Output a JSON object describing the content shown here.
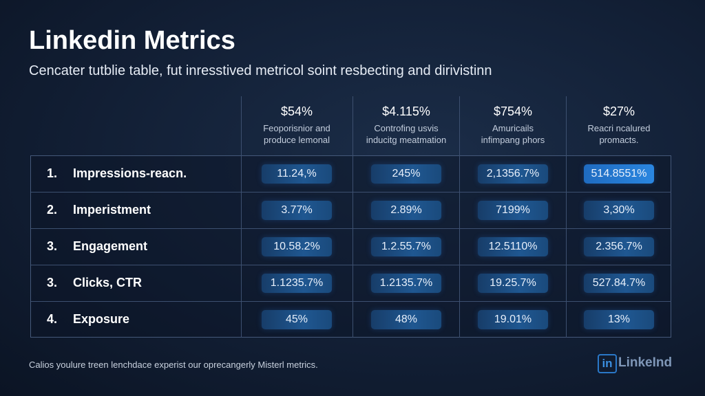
{
  "header": {
    "title": "Linkedin Metrics",
    "subtitle": "Cencater tutblie table, fut inresstived metricol soint resbecting and dirivistinn"
  },
  "table": {
    "columns": [
      {
        "value": "$54%",
        "description": [
          "Feoporisnior and",
          "produce lemonal"
        ]
      },
      {
        "value": "$4.115%",
        "description": [
          "Controfing usvis",
          "inducitg meatmation"
        ]
      },
      {
        "value": "$754%",
        "description": [
          "Amuricails",
          "infimpang phors"
        ]
      },
      {
        "value": "$27%",
        "description": [
          "Reacri ncalured",
          "promacts."
        ]
      }
    ],
    "rows": [
      {
        "number": "1.",
        "label": "Impressions-reacn.",
        "cells": [
          "11.24,%",
          "245%",
          "2,1356.7%",
          "514.8551%"
        ]
      },
      {
        "number": "2.",
        "label": "Imperistment",
        "cells": [
          "3.77%",
          "2.89%",
          "7199%",
          "3,30%"
        ]
      },
      {
        "number": "3.",
        "label": "Engagement",
        "cells": [
          "10.58.2%",
          "1.2.55.7%",
          "12.5110%",
          "2.356.7%"
        ]
      },
      {
        "number": "3.",
        "label": "Clicks, CTR",
        "cells": [
          "1.1235.7%",
          "1.2135.7%",
          "19.25.7%",
          "527.84.7%"
        ]
      },
      {
        "number": "4.",
        "label": "Exposure",
        "cells": [
          "45%",
          "48%",
          "19.01%",
          "13%"
        ]
      }
    ]
  },
  "footer": {
    "note": "Calios youlure treen lenchdace experist our oprecangerly Misterl metrics.",
    "logo_icon": "in",
    "logo_text": "LinkeInd"
  }
}
